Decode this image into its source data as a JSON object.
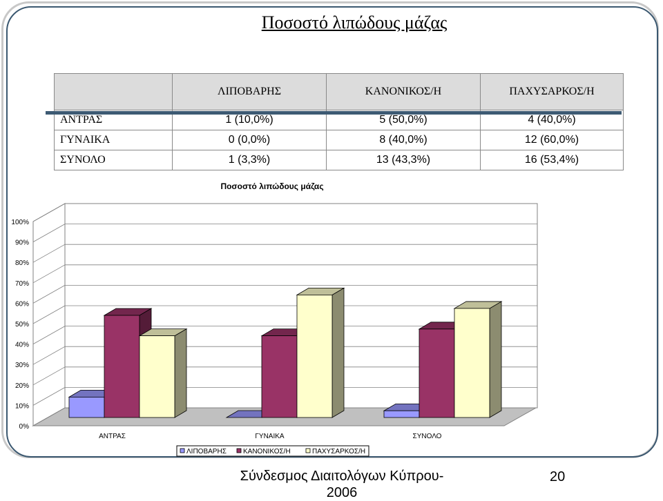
{
  "slide": {
    "title": "Ποσοστό λιπώδους μάζας",
    "footer": "Σύνδεσμος Διαιτολόγων Κύπρου- 2006",
    "page_number": "20"
  },
  "table": {
    "headers": [
      "",
      "ΛΙΠΟΒΑΡΗΣ",
      "ΚΑΝΟΝΙΚΟΣ/Η",
      "ΠΑΧΥΣΑΡΚΟΣ/Η"
    ],
    "rows": [
      {
        "label": "ΑΝΤΡΑΣ",
        "values": [
          "1 (10,0%)",
          "5 (50,0%)",
          "4 (40,0%)"
        ]
      },
      {
        "label": "ΓΥΝΑΙΚΑ",
        "values": [
          "0 (0,0%)",
          "8 (40,0%)",
          "12 (60,0%)"
        ]
      },
      {
        "label": "ΣΥΝΟΛΟ",
        "values": [
          "1 (3,3%)",
          "13 (43,3%)",
          "16 (53,4%)"
        ]
      }
    ]
  },
  "chart_data": {
    "type": "bar",
    "title": "Ποσοστό λιπώδους μάζας",
    "categories": [
      "ΑΝΤΡΑΣ",
      "ΓΥΝΑΙΚΑ",
      "ΣΥΝΟΛΟ"
    ],
    "series": [
      {
        "name": "ΛΙΠΟΒΑΡΗΣ",
        "values": [
          10.0,
          0.0,
          3.3
        ],
        "color": "#9999ff"
      },
      {
        "name": "ΚΑΝΟΝΙΚΟΣ/Η",
        "values": [
          50.0,
          40.0,
          43.3
        ],
        "color": "#993366"
      },
      {
        "name": "ΠΑΧΥΣΑΡΚΟΣ/Η",
        "values": [
          40.0,
          60.0,
          53.4
        ],
        "color": "#ffffcc"
      }
    ],
    "yticks": [
      "0%",
      "10%",
      "20%",
      "30%",
      "40%",
      "50%",
      "60%",
      "70%",
      "80%",
      "90%",
      "100%"
    ],
    "ylim": [
      0,
      100
    ],
    "grid": true,
    "legend": "bottom",
    "style": "3d-column"
  }
}
